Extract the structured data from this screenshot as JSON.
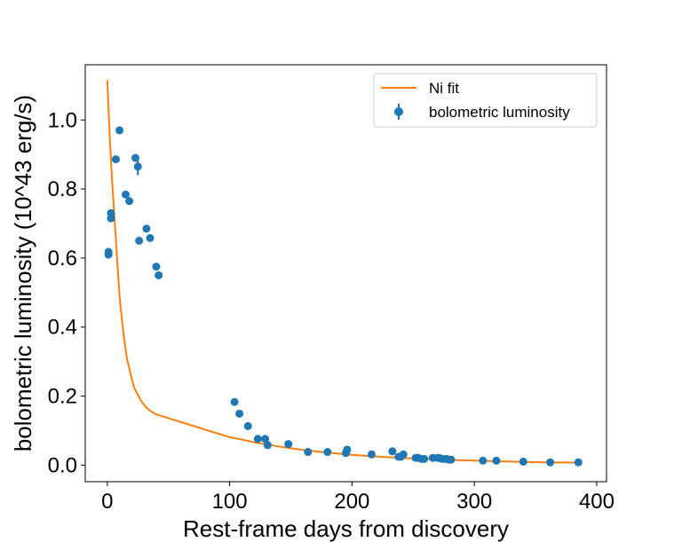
{
  "chart_data": {
    "type": "scatter",
    "title": "",
    "xlabel": "Rest-frame days from discovery",
    "ylabel": "bolometric luminosity (10^43 erg/s)",
    "xlim": [
      -18,
      408
    ],
    "ylim": [
      -0.048,
      1.16
    ],
    "xticks": [
      0,
      100,
      200,
      300,
      400
    ],
    "yticks": [
      0.0,
      0.2,
      0.4,
      0.6,
      0.8,
      1.0
    ],
    "xtick_labels": [
      "0",
      "100",
      "200",
      "300",
      "400"
    ],
    "ytick_labels": [
      "0.0",
      "0.2",
      "0.4",
      "0.6",
      "0.8",
      "1.0"
    ],
    "grid": false,
    "legend_position": "top-right",
    "series": [
      {
        "name": "Ni fit",
        "kind": "line",
        "color": "#ff7f0e",
        "x": [
          0,
          2,
          4,
          6,
          8,
          10,
          12,
          14,
          16,
          18,
          20,
          22,
          24,
          27,
          30,
          33,
          36,
          40,
          50,
          60,
          70,
          80,
          90,
          100,
          110,
          120,
          130,
          140,
          150,
          160,
          170,
          180,
          190,
          200,
          220,
          240,
          260,
          280,
          300,
          320,
          340,
          360,
          385
        ],
        "y": [
          1.115,
          0.95,
          0.82,
          0.71,
          0.6,
          0.49,
          0.42,
          0.36,
          0.31,
          0.28,
          0.25,
          0.225,
          0.21,
          0.19,
          0.175,
          0.163,
          0.155,
          0.147,
          0.136,
          0.125,
          0.114,
          0.103,
          0.092,
          0.081,
          0.074,
          0.066,
          0.06,
          0.054,
          0.049,
          0.044,
          0.04,
          0.036,
          0.033,
          0.03,
          0.025,
          0.021,
          0.018,
          0.015,
          0.013,
          0.011,
          0.009,
          0.008,
          0.007
        ]
      },
      {
        "name": "bolometric luminosity",
        "kind": "errorbar-scatter",
        "color": "#1f77b4",
        "x": [
          1,
          1,
          3,
          3,
          7,
          10,
          15,
          18,
          23,
          25,
          26,
          32,
          35,
          40,
          42,
          104,
          108,
          115,
          123,
          129,
          131,
          148,
          164,
          180,
          195,
          196,
          216,
          233,
          238,
          240,
          242,
          252,
          254,
          257,
          259,
          266,
          270,
          272,
          274,
          277,
          279,
          281,
          307,
          318,
          340,
          362,
          385
        ],
        "y": [
          0.61,
          0.618,
          0.715,
          0.73,
          0.886,
          0.97,
          0.784,
          0.765,
          0.89,
          0.865,
          0.65,
          0.685,
          0.658,
          0.575,
          0.55,
          0.183,
          0.149,
          0.113,
          0.076,
          0.076,
          0.058,
          0.061,
          0.038,
          0.038,
          0.035,
          0.045,
          0.031,
          0.04,
          0.024,
          0.024,
          0.031,
          0.021,
          0.021,
          0.018,
          0.018,
          0.021,
          0.021,
          0.02,
          0.018,
          0.018,
          0.016,
          0.016,
          0.013,
          0.013,
          0.01,
          0.008,
          0.008
        ],
        "yerr": [
          0,
          0,
          0,
          0,
          0,
          0,
          0,
          0,
          0,
          0.025,
          0,
          0,
          0,
          0,
          0,
          0,
          0,
          0,
          0,
          0,
          0,
          0,
          0,
          0,
          0,
          0,
          0,
          0,
          0,
          0,
          0,
          0,
          0,
          0,
          0,
          0,
          0,
          0,
          0,
          0,
          0,
          0,
          0,
          0,
          0,
          0,
          0
        ]
      }
    ]
  }
}
